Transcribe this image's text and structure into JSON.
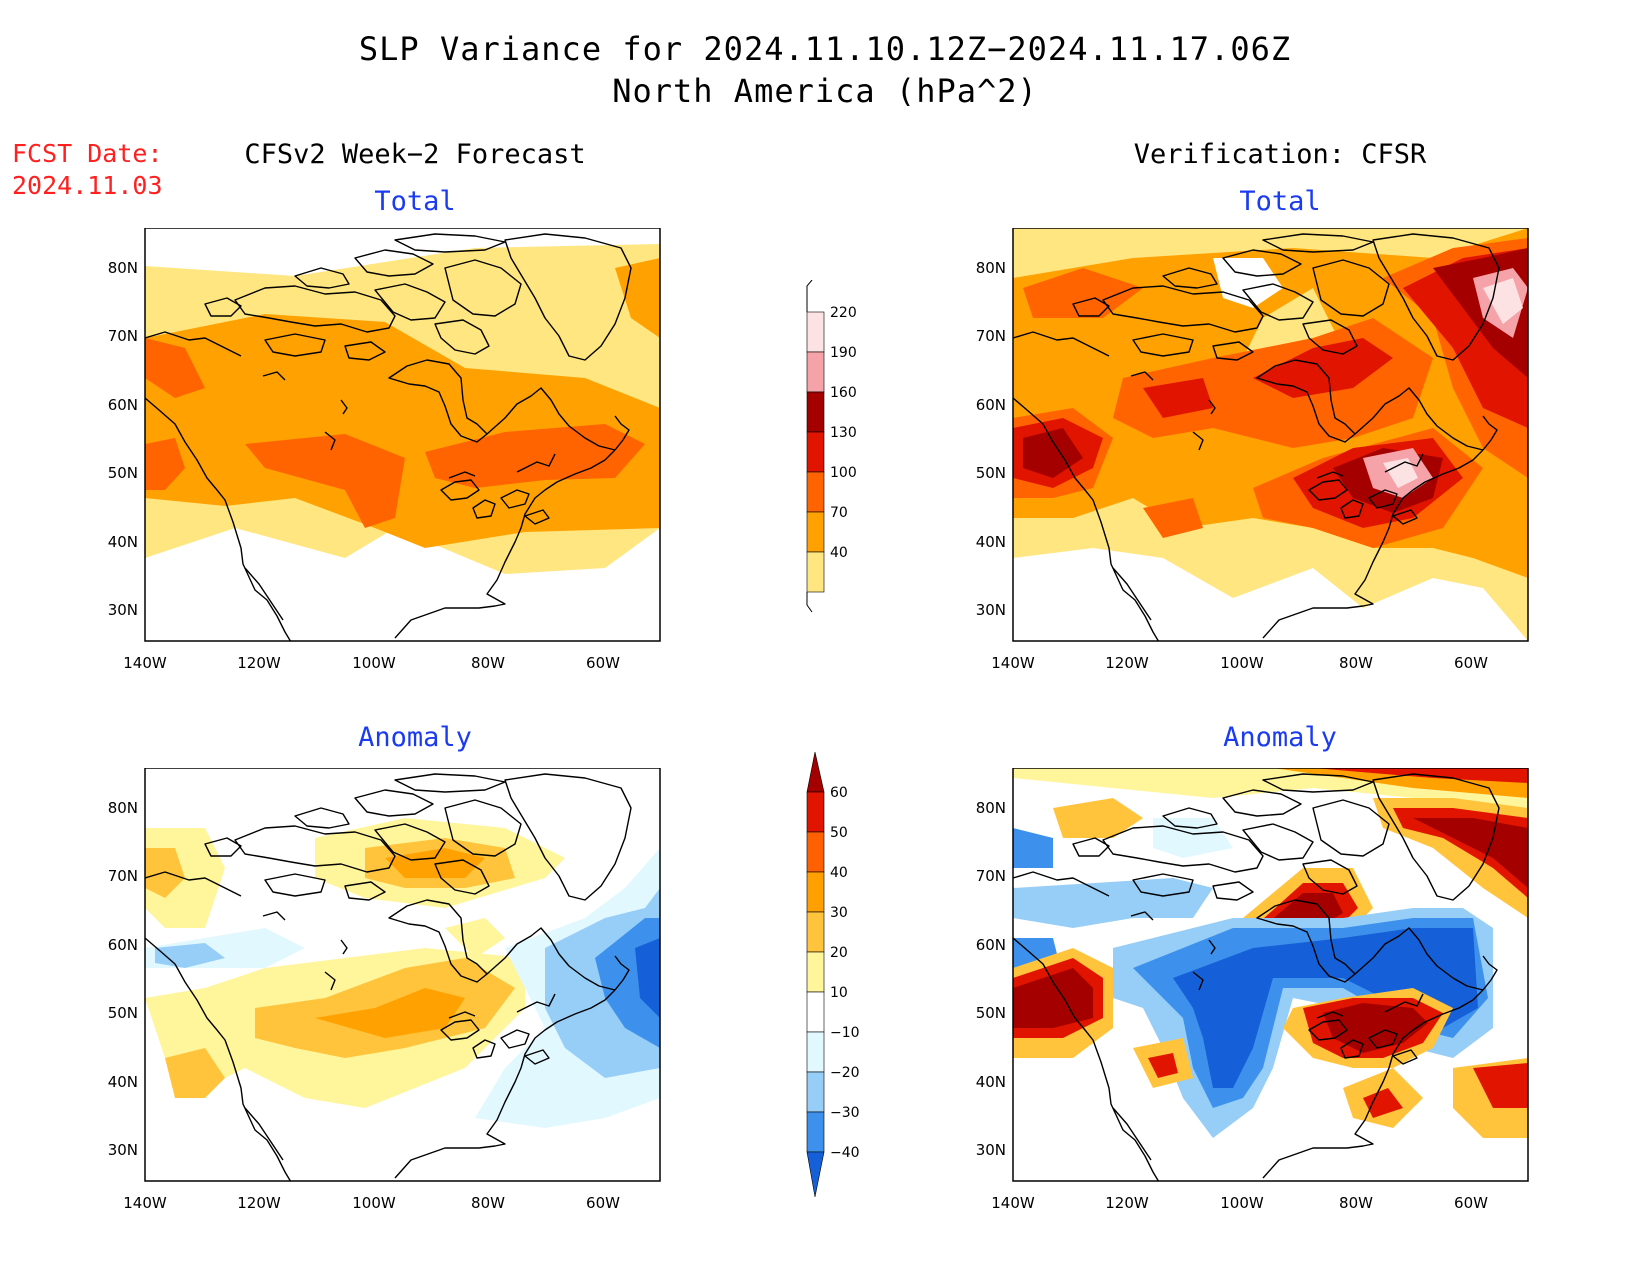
{
  "title": {
    "line1": "SLP Variance for 2024.11.10.12Z−2024.11.17.06Z",
    "line2": "North America (hPa^2)"
  },
  "fcst_date": {
    "label": "FCST Date:",
    "value": "2024.11.03"
  },
  "columns": {
    "left": "CFSv2 Week−2 Forecast",
    "right": "Verification: CFSR"
  },
  "panels": {
    "fc_total": {
      "subtitle": "Total"
    },
    "vf_total": {
      "subtitle": "Total"
    },
    "fc_anom": {
      "subtitle": "Anomaly"
    },
    "vf_anom": {
      "subtitle": "Anomaly"
    }
  },
  "axes": {
    "lat_labels": [
      "80N",
      "70N",
      "60N",
      "50N",
      "40N",
      "30N"
    ],
    "lon_labels": [
      "140W",
      "120W",
      "100W",
      "80W",
      "60W"
    ]
  },
  "colorbars": {
    "total": {
      "levels": [
        "40",
        "70",
        "100",
        "130",
        "160",
        "190",
        "220"
      ],
      "colors": [
        "#ffe680",
        "#ffa100",
        "#ff6400",
        "#e11400",
        "#a50000",
        "#f5a3a8",
        "#fde2e3"
      ]
    },
    "anomaly": {
      "levels": [
        "−40",
        "−30",
        "−20",
        "−10",
        "10",
        "20",
        "30",
        "40",
        "50",
        "60"
      ],
      "colors": [
        "#1560d8",
        "#3d91ec",
        "#96cef8",
        "#e1f8ff",
        "#ffffff",
        "#fff59b",
        "#ffc43c",
        "#ffa000",
        "#ff6000",
        "#e11400",
        "#a50000"
      ]
    }
  }
}
